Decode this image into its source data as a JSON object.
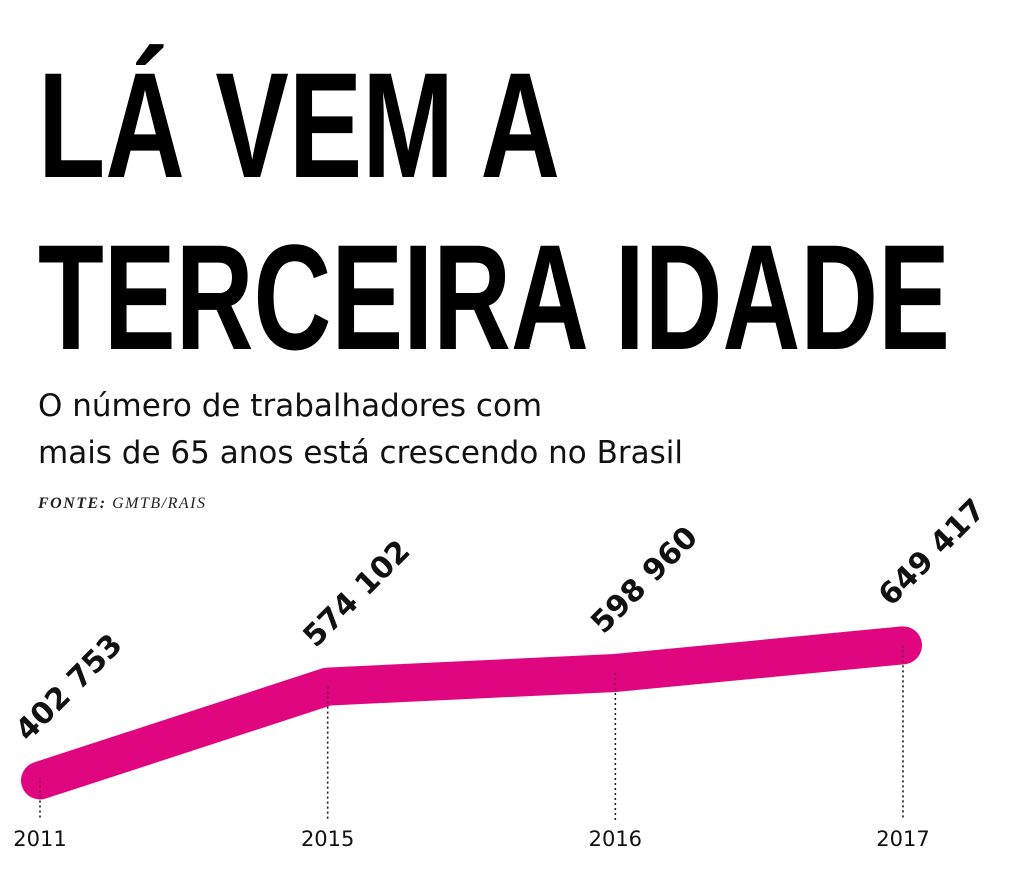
{
  "chart_data": {
    "type": "line",
    "title": [
      "LÁ VEM A",
      "TERCEIRA IDADE"
    ],
    "subtitle": [
      "O número de trabalhadores com",
      "mais de 65 anos está crescendo no Brasil"
    ],
    "source_label": "FONTE:",
    "source": "GMTB/RAIS",
    "categories": [
      "2011",
      "2015",
      "2016",
      "2017"
    ],
    "values": [
      402753,
      574102,
      598960,
      649417
    ],
    "value_labels": [
      "402 753",
      "574 102",
      "598 960",
      "649 417"
    ],
    "color": "#e0067f",
    "ylim": [
      400000,
      650000
    ]
  }
}
